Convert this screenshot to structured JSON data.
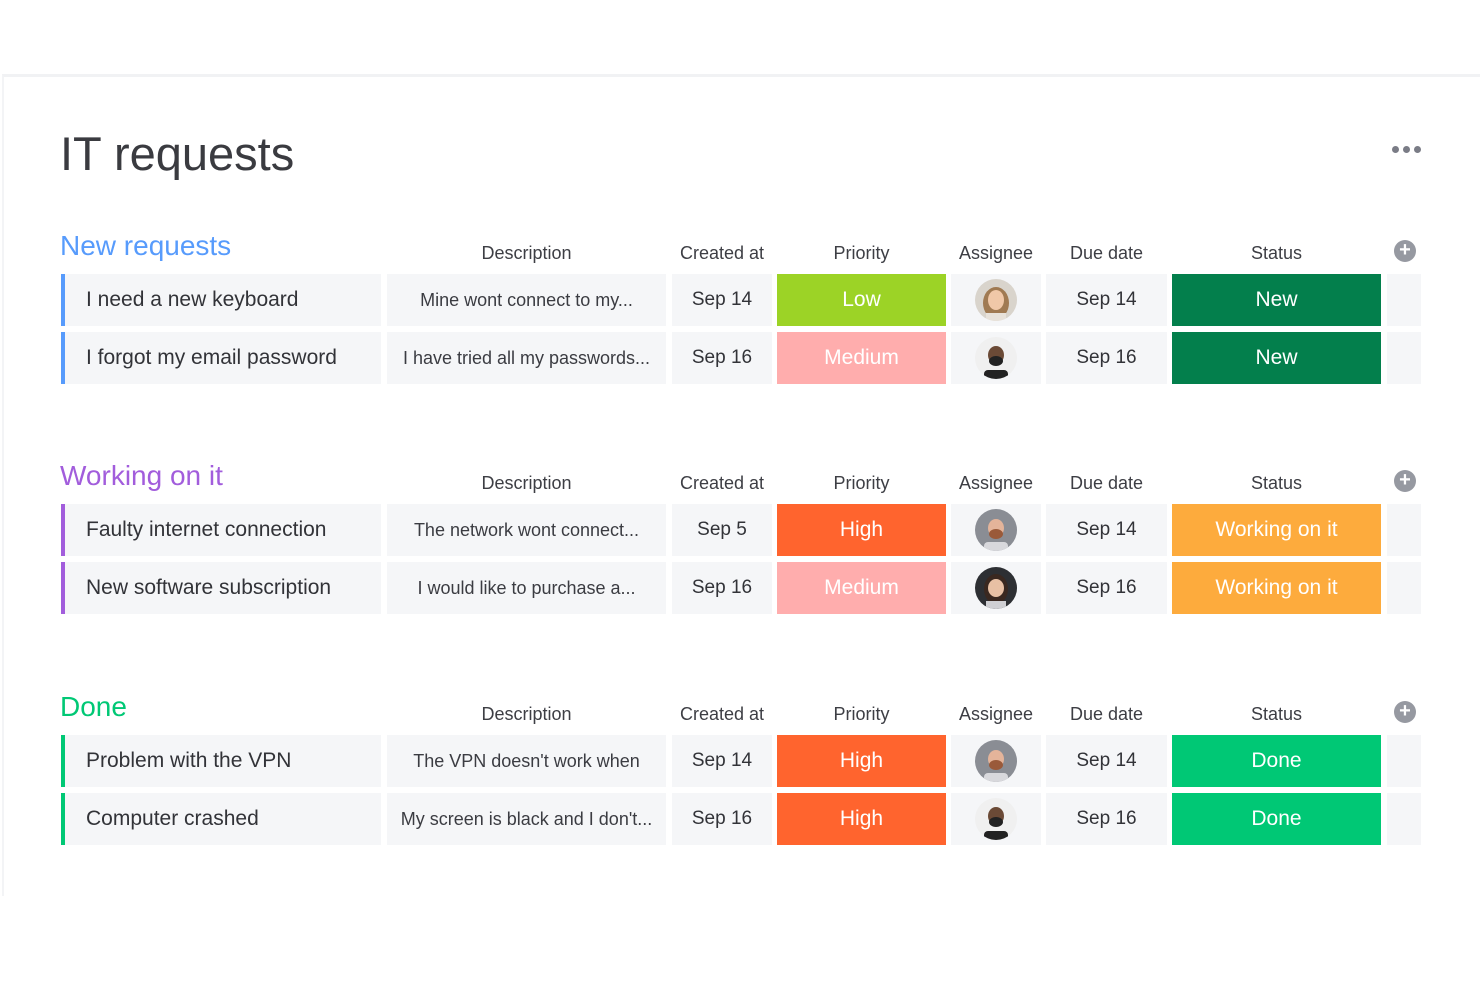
{
  "board": {
    "title": "IT requests"
  },
  "columns": {
    "description": "Description",
    "created_at": "Created at",
    "priority": "Priority",
    "assignee": "Assignee",
    "due_date": "Due date",
    "status": "Status"
  },
  "colors": {
    "group_new": "#579bfc",
    "group_working": "#a25ddc",
    "group_done": "#00c875",
    "priority_low": "#9cd326",
    "priority_medium": "#ffadad",
    "priority_high": "#ff642e",
    "status_new": "#037f4c",
    "status_working": "#fdab3d",
    "status_done": "#00c875"
  },
  "groups": [
    {
      "title": "New requests",
      "color": "#579bfc",
      "rows": [
        {
          "name": "I need a new keyboard",
          "description": "Mine wont connect to my...",
          "created": "Sep 14",
          "priority": "Low",
          "priority_color": "#9cd326",
          "assignee": "woman-light-hair",
          "due": "Sep 14",
          "status": "New",
          "status_color": "#037f4c"
        },
        {
          "name": "I forgot my email password",
          "description": "I have tried all my passwords...",
          "created": "Sep 16",
          "priority": "Medium",
          "priority_color": "#ffadad",
          "assignee": "man-dark-beard",
          "due": "Sep 16",
          "status": "New",
          "status_color": "#037f4c"
        }
      ]
    },
    {
      "title": "Working on it",
      "color": "#a25ddc",
      "rows": [
        {
          "name": "Faulty internet connection",
          "description": "The network wont connect...",
          "created": "Sep 5",
          "priority": "High",
          "priority_color": "#ff642e",
          "assignee": "man-red-beard",
          "due": "Sep 14",
          "status": "Working on it",
          "status_color": "#fdab3d"
        },
        {
          "name": "New software subscription",
          "description": "I would like to purchase a...",
          "created": "Sep 16",
          "priority": "Medium",
          "priority_color": "#ffadad",
          "assignee": "woman-dark-hair",
          "due": "Sep 16",
          "status": "Working on it",
          "status_color": "#fdab3d"
        }
      ]
    },
    {
      "title": "Done",
      "color": "#00c875",
      "rows": [
        {
          "name": "Problem with the VPN",
          "description": "The VPN doesn't work when",
          "created": "Sep 14",
          "priority": "High",
          "priority_color": "#ff642e",
          "assignee": "man-red-beard",
          "due": "Sep 14",
          "status": "Done",
          "status_color": "#00c875"
        },
        {
          "name": "Computer crashed",
          "description": "My screen is black and I don't...",
          "created": "Sep 16",
          "priority": "High",
          "priority_color": "#ff642e",
          "assignee": "man-dark-beard",
          "due": "Sep 16",
          "status": "Done",
          "status_color": "#00c875"
        }
      ]
    }
  ]
}
